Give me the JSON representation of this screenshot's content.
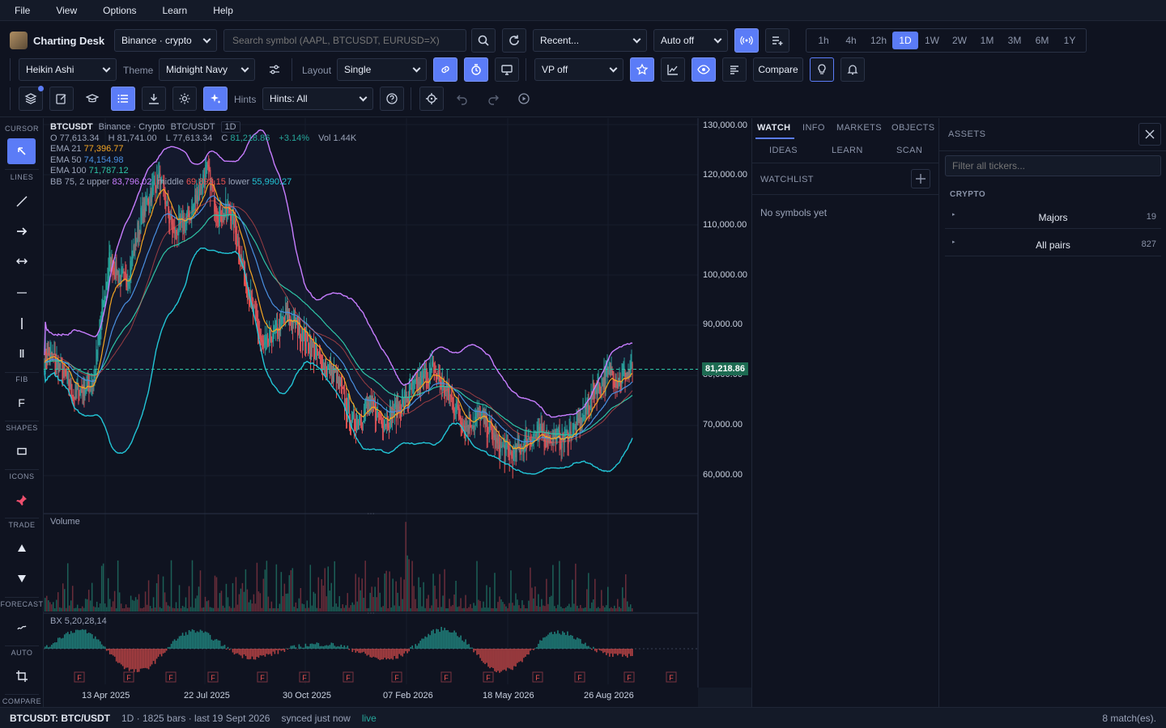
{
  "menu": [
    "File",
    "View",
    "Options",
    "Learn",
    "Help"
  ],
  "app": {
    "title": "Charting Desk"
  },
  "toolbar1": {
    "exchange": "Binance · crypto",
    "search_placeholder": "Search symbol (AAPL, BTCUSDT, EURUSD=X)",
    "recent": "Recent...",
    "auto": "Auto off",
    "timeframes": [
      "1h",
      "4h",
      "12h",
      "1D",
      "1W",
      "2W",
      "1M",
      "3M",
      "6M",
      "1Y"
    ],
    "active_tf": "1D"
  },
  "toolbar2": {
    "chart_type": "Heikin Ashi",
    "theme_label": "Theme",
    "theme": "Midnight Navy",
    "layout_label": "Layout",
    "layout": "Single",
    "vp": "VP off",
    "compare": "Compare"
  },
  "toolbar3": {
    "hints_label": "Hints",
    "hints": "Hints: All"
  },
  "leftbar": {
    "sections": [
      "CURSOR",
      "LINES",
      "FIB",
      "SHAPES",
      "ICONS",
      "TRADE",
      "FORECAST",
      "AUTO",
      "COMPARE"
    ]
  },
  "legend": {
    "symbol": "BTCUSDT",
    "exchange": "Binance · Crypto",
    "pair": "BTC/USDT",
    "tf": "1D",
    "o": "O 77,613.34",
    "h": "H 81,741.00",
    "l": "L 77,613.34",
    "c_label": "C",
    "c": "81,218.86",
    "chg": "+3.14%",
    "vol": "Vol 1.44K",
    "ema21_label": "EMA 21",
    "ema21": "77,396.77",
    "ema50_label": "EMA 50",
    "ema50": "74,154.98",
    "ema100_label": "EMA 100",
    "ema100": "71,787.12",
    "bb_label": "BB 75, 2",
    "bb_upper_label": "upper",
    "bb_upper": "83,796.02",
    "bb_middle_label": "middle",
    "bb_middle": "69,893.15",
    "bb_lower_label": "lower",
    "bb_lower": "55,990.27"
  },
  "price_axis": [
    "130,000.00",
    "120,000.00",
    "110,000.00",
    "100,000.00",
    "90,000.00",
    "80,000.00",
    "70,000.00",
    "60,000.00"
  ],
  "last_price": "81,218.86",
  "time_axis": [
    "13 Apr 2025",
    "22 Jul 2025",
    "30 Oct 2025",
    "07 Feb 2026",
    "18 May 2026",
    "26 Aug 2026"
  ],
  "volume_label": "Volume",
  "osc_label": "BX 5,20,28,14",
  "colors": {
    "accent": "#5b7cf7",
    "up": "#26a69a",
    "down": "#ef5350",
    "ema21": "#f5a623",
    "ema50": "#4a90e2",
    "ema100": "#2ec4a6",
    "bb_upper": "#c77dff",
    "bb_lower": "#22c5d6"
  },
  "right_panel": {
    "tabs": [
      "WATCH",
      "INFO",
      "MARKETS",
      "OBJECTS"
    ],
    "tabs2": [
      "IDEAS",
      "LEARN",
      "SCAN"
    ],
    "watchlist_title": "WATCHLIST",
    "empty": "No symbols yet"
  },
  "assets": {
    "title": "ASSETS",
    "filter_placeholder": "Filter all tickers...",
    "group": "CRYPTO",
    "rows": [
      {
        "name": "Majors",
        "count": "19"
      },
      {
        "name": "All pairs",
        "count": "827"
      }
    ]
  },
  "status": {
    "symbol": "BTCUSDT: BTC/USDT",
    "info": "1D · 1825 bars · last 19 Sept 2026",
    "sync": "synced just now",
    "live": "live",
    "matches": "8 match(es)."
  }
}
